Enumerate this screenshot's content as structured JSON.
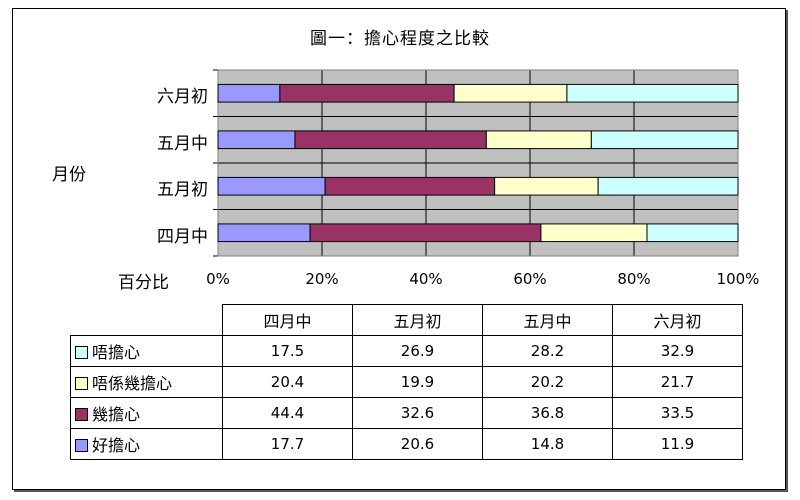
{
  "chart_data": {
    "type": "bar",
    "orientation": "horizontal",
    "stacked": "percent",
    "title": "圖一：擔心程度之比較",
    "xlabel": "百分比",
    "ylabel": "月份",
    "xlim": [
      0,
      100
    ],
    "x_ticks": [
      "0%",
      "20%",
      "40%",
      "60%",
      "80%",
      "100%"
    ],
    "categories": [
      "四月中",
      "五月初",
      "五月中",
      "六月初"
    ],
    "series": [
      {
        "name": "好擔心",
        "color": "#9999ff",
        "values": [
          17.7,
          20.6,
          14.8,
          11.9
        ]
      },
      {
        "name": "幾擔心",
        "color": "#993366",
        "values": [
          44.4,
          32.6,
          36.8,
          33.5
        ]
      },
      {
        "name": "唔係幾擔心",
        "color": "#ffffcc",
        "values": [
          20.4,
          19.9,
          20.2,
          21.7
        ]
      },
      {
        "name": "唔擔心",
        "color": "#ccffff",
        "values": [
          17.5,
          26.9,
          28.2,
          32.9
        ]
      }
    ],
    "grid": true,
    "legend": "data-table"
  },
  "table": {
    "headers": [
      "四月中",
      "五月初",
      "五月中",
      "六月初"
    ],
    "rows": [
      {
        "label": "唔擔心",
        "color": "#ccffff",
        "values": [
          "17.5",
          "26.9",
          "28.2",
          "32.9"
        ]
      },
      {
        "label": "唔係幾擔心",
        "color": "#ffffcc",
        "values": [
          "20.4",
          "19.9",
          "20.2",
          "21.7"
        ]
      },
      {
        "label": "幾擔心",
        "color": "#993366",
        "values": [
          "44.4",
          "32.6",
          "36.8",
          "33.5"
        ]
      },
      {
        "label": "好擔心",
        "color": "#9999ff",
        "values": [
          "17.7",
          "20.6",
          "14.8",
          "11.9"
        ]
      }
    ]
  }
}
